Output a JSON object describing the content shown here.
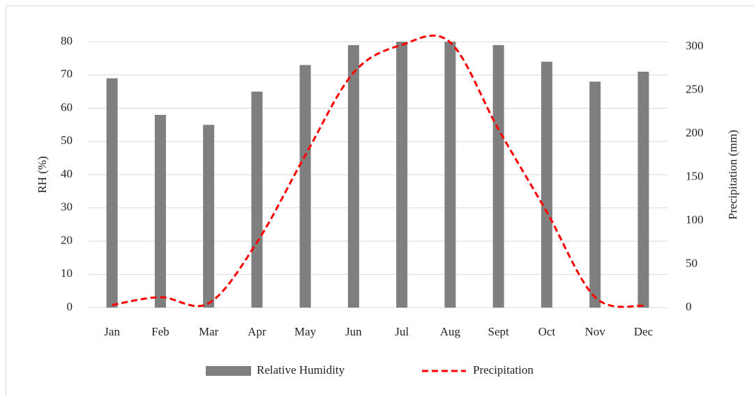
{
  "chart_data": {
    "type": "bar-line",
    "categories": [
      "Jan",
      "Feb",
      "Mar",
      "Apr",
      "May",
      "Jun",
      "Jul",
      "Aug",
      "Sept",
      "Oct",
      "Nov",
      "Dec"
    ],
    "series": [
      {
        "name": "Relative Humidity",
        "color": "#7f7f7f",
        "type": "bar",
        "values": [
          69,
          58,
          55,
          65,
          73,
          79,
          80,
          80,
          79,
          74,
          68,
          71
        ]
      },
      {
        "name": "Precipitation",
        "color": "#ff0000",
        "type": "line",
        "axis": "y2",
        "values": [
          3,
          12,
          5,
          75,
          175,
          270,
          302,
          305,
          205,
          110,
          12,
          2
        ]
      }
    ],
    "ylabel": "RH (%)",
    "y2label": "Precipitation (mm)",
    "ylim": [
      0,
      80
    ],
    "yticks": [
      0,
      10,
      20,
      30,
      40,
      50,
      60,
      70,
      80
    ],
    "y2lim": [
      0,
      305.6
    ],
    "y2ticks": [
      0,
      50,
      100,
      150,
      200,
      250,
      300
    ],
    "grid": true,
    "legend": "bottom"
  }
}
